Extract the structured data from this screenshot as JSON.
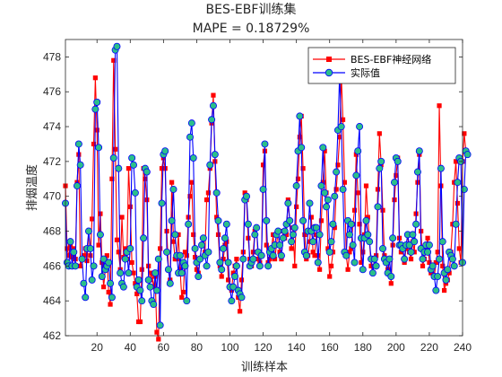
{
  "chart_data": {
    "type": "line",
    "title": "BES-EBF训练集",
    "subtitle": "MAPE = 0.18729%",
    "xlabel": "训练样本",
    "ylabel": "排烟温度",
    "xlim": [
      1,
      240
    ],
    "ylim": [
      462,
      479
    ],
    "xticks": [
      20,
      40,
      60,
      80,
      100,
      120,
      140,
      160,
      180,
      200,
      220,
      240
    ],
    "yticks": [
      462,
      464,
      466,
      468,
      470,
      472,
      474,
      476,
      478
    ],
    "legend_position": "top-right",
    "box": true,
    "grid": false,
    "series": [
      {
        "name": "BES-EBF神经网络",
        "color": "#ff0000",
        "marker": "square",
        "values": [
          470.6,
          467.0,
          466.6,
          467.2,
          466.5,
          467.0,
          466.4,
          470.8,
          472.4,
          466.0,
          466.4,
          466.6,
          467.0,
          466.3,
          468.0,
          466.6,
          468.7,
          473.0,
          476.8,
          473.8,
          467.2,
          469.0,
          466.2,
          464.8,
          465.8,
          466.6,
          464.5,
          463.8,
          471.0,
          477.8,
          472.7,
          467.5,
          466.8,
          465.8,
          468.8,
          466.5,
          467.0,
          466.4,
          471.6,
          469.4,
          466.2,
          465.6,
          465.0,
          464.4,
          462.8,
          462.8,
          465.8,
          471.6,
          471.0,
          469.8,
          466.0,
          465.2,
          465.6,
          464.8,
          465.4,
          462.2,
          461.8,
          467.0,
          471.6,
          472.2,
          471.6,
          468.0,
          465.8,
          465.2,
          470.8,
          467.4,
          466.4,
          466.4,
          467.8,
          465.8,
          464.2,
          464.5,
          466.8,
          466.6,
          468.8,
          470.0,
          470.8,
          467.8,
          466.5,
          465.8,
          465.6,
          466.4,
          467.2,
          467.6,
          466.8,
          469.8,
          470.2,
          471.6,
          474.2,
          475.8,
          472.0,
          468.8,
          467.8,
          466.0,
          465.4,
          466.4,
          467.2,
          467.4,
          465.2,
          464.8,
          464.6,
          465.6,
          466.0,
          466.4,
          464.2,
          463.4,
          465.2,
          466.8,
          470.2,
          469.8,
          467.6,
          466.4,
          466.0,
          466.8,
          468.0,
          468.2,
          466.4,
          466.2,
          466.6,
          471.8,
          472.6,
          467.2,
          466.2,
          466.4,
          467.0,
          467.8,
          466.4,
          467.2,
          468.0,
          466.8,
          466.4,
          468.0,
          467.6,
          467.8,
          469.8,
          468.6,
          467.0,
          468.2,
          466.0,
          469.4,
          471.0,
          473.4,
          474.6,
          471.6,
          467.8,
          466.4,
          466.6,
          467.4,
          468.8,
          466.8,
          466.6,
          467.8,
          466.6,
          465.8,
          468.6,
          470.8,
          472.6,
          470.2,
          467.0,
          465.4,
          466.0,
          466.8,
          468.2,
          470.4,
          471.8,
          473.4,
          477.0,
          474.4,
          470.8,
          466.6,
          465.8,
          466.8,
          467.0,
          468.4,
          469.2,
          472.4,
          470.2,
          468.4,
          466.2,
          466.8,
          467.8,
          470.6,
          468.8,
          467.4,
          466.0,
          465.6,
          466.4,
          466.6,
          470.4,
          473.6,
          471.8,
          469.2,
          466.6,
          466.2,
          465.8,
          466.4,
          465.0,
          467.2,
          469.8,
          471.2,
          472.2,
          467.6,
          466.8,
          467.0,
          466.2,
          467.0,
          467.8,
          466.8,
          466.4,
          467.4,
          466.8,
          469.0,
          470.8,
          472.4,
          468.0,
          466.0,
          466.4,
          467.0,
          467.6,
          466.2,
          465.6,
          466.0,
          465.4,
          466.2,
          466.8,
          475.2,
          470.6,
          466.0,
          464.6,
          465.0,
          465.2,
          465.6,
          466.8,
          468.4,
          470.8,
          472.0,
          469.6,
          467.0,
          466.2,
          472.0,
          473.6,
          472.6
        ]
      },
      {
        "name": "实际值",
        "color": "#0000ff",
        "marker": "circle",
        "marker_fill": "#2bbf8a",
        "values": [
          469.6,
          466.2,
          466.0,
          467.4,
          466.0,
          466.8,
          466.0,
          470.6,
          473.0,
          471.8,
          466.4,
          465.0,
          464.2,
          467.0,
          468.0,
          467.0,
          465.2,
          466.0,
          475.0,
          475.4,
          472.8,
          467.8,
          465.4,
          466.4,
          465.8,
          466.0,
          466.2,
          465.0,
          464.2,
          472.2,
          478.4,
          478.6,
          471.6,
          465.6,
          465.0,
          464.8,
          466.4,
          466.8,
          465.6,
          467.0,
          472.2,
          471.8,
          470.2,
          464.8,
          465.2,
          464.6,
          464.0,
          467.6,
          471.6,
          471.4,
          465.2,
          464.8,
          464.0,
          463.8,
          465.6,
          464.6,
          466.4,
          462.6,
          469.6,
          472.4,
          472.6,
          466.8,
          465.8,
          465.0,
          468.6,
          470.4,
          467.8,
          466.6,
          465.6,
          466.6,
          465.6,
          466.2,
          466.0,
          464.0,
          468.4,
          473.4,
          474.2,
          472.2,
          467.0,
          466.2,
          465.4,
          466.4,
          467.2,
          467.6,
          466.6,
          466.0,
          466.8,
          471.8,
          474.4,
          475.2,
          472.4,
          470.2,
          468.6,
          466.2,
          465.8,
          467.0,
          467.6,
          468.4,
          466.2,
          464.8,
          464.0,
          464.8,
          465.4,
          466.0,
          464.6,
          464.4,
          464.2,
          466.4,
          469.8,
          470.0,
          468.4,
          466.0,
          466.2,
          466.4,
          467.8,
          468.2,
          466.8,
          466.0,
          466.6,
          470.4,
          473.0,
          468.6,
          466.0,
          466.8,
          467.0,
          466.6,
          467.2,
          467.8,
          468.0,
          467.2,
          466.6,
          467.6,
          468.0,
          468.4,
          469.6,
          468.6,
          467.4,
          467.8,
          468.2,
          470.6,
          472.6,
          474.6,
          472.8,
          468.6,
          466.8,
          466.6,
          468.0,
          469.6,
          468.0,
          467.4,
          468.2,
          468.2,
          466.2,
          467.8,
          470.6,
          472.8,
          470.2,
          469.4,
          469.8,
          466.8,
          467.4,
          468.4,
          470.0,
          471.4,
          473.8,
          477.0,
          474.0,
          470.4,
          466.8,
          466.6,
          468.6,
          467.8,
          468.4,
          467.2,
          466.2,
          471.2,
          472.6,
          474.0,
          467.6,
          465.8,
          467.6,
          468.6,
          467.8,
          467.4,
          466.4,
          465.6,
          466.4,
          466.0,
          469.4,
          471.6,
          472.0,
          467.0,
          466.4,
          466.2,
          465.6,
          466.4,
          465.4,
          467.6,
          470.8,
          472.2,
          472.0,
          467.2,
          467.2,
          467.0,
          466.4,
          467.2,
          467.8,
          467.2,
          466.8,
          467.8,
          467.4,
          468.4,
          471.4,
          472.6,
          467.0,
          466.4,
          466.8,
          467.2,
          466.8,
          467.2,
          465.8,
          466.0,
          465.4,
          464.6,
          465.4,
          466.4,
          471.6,
          467.4,
          465.6,
          465.2,
          465.8,
          466.8,
          466.6,
          466.4,
          466.0,
          468.4,
          470.8,
          472.2,
          472.0,
          466.2,
          470.4,
          472.6,
          472.4
        ]
      }
    ]
  }
}
